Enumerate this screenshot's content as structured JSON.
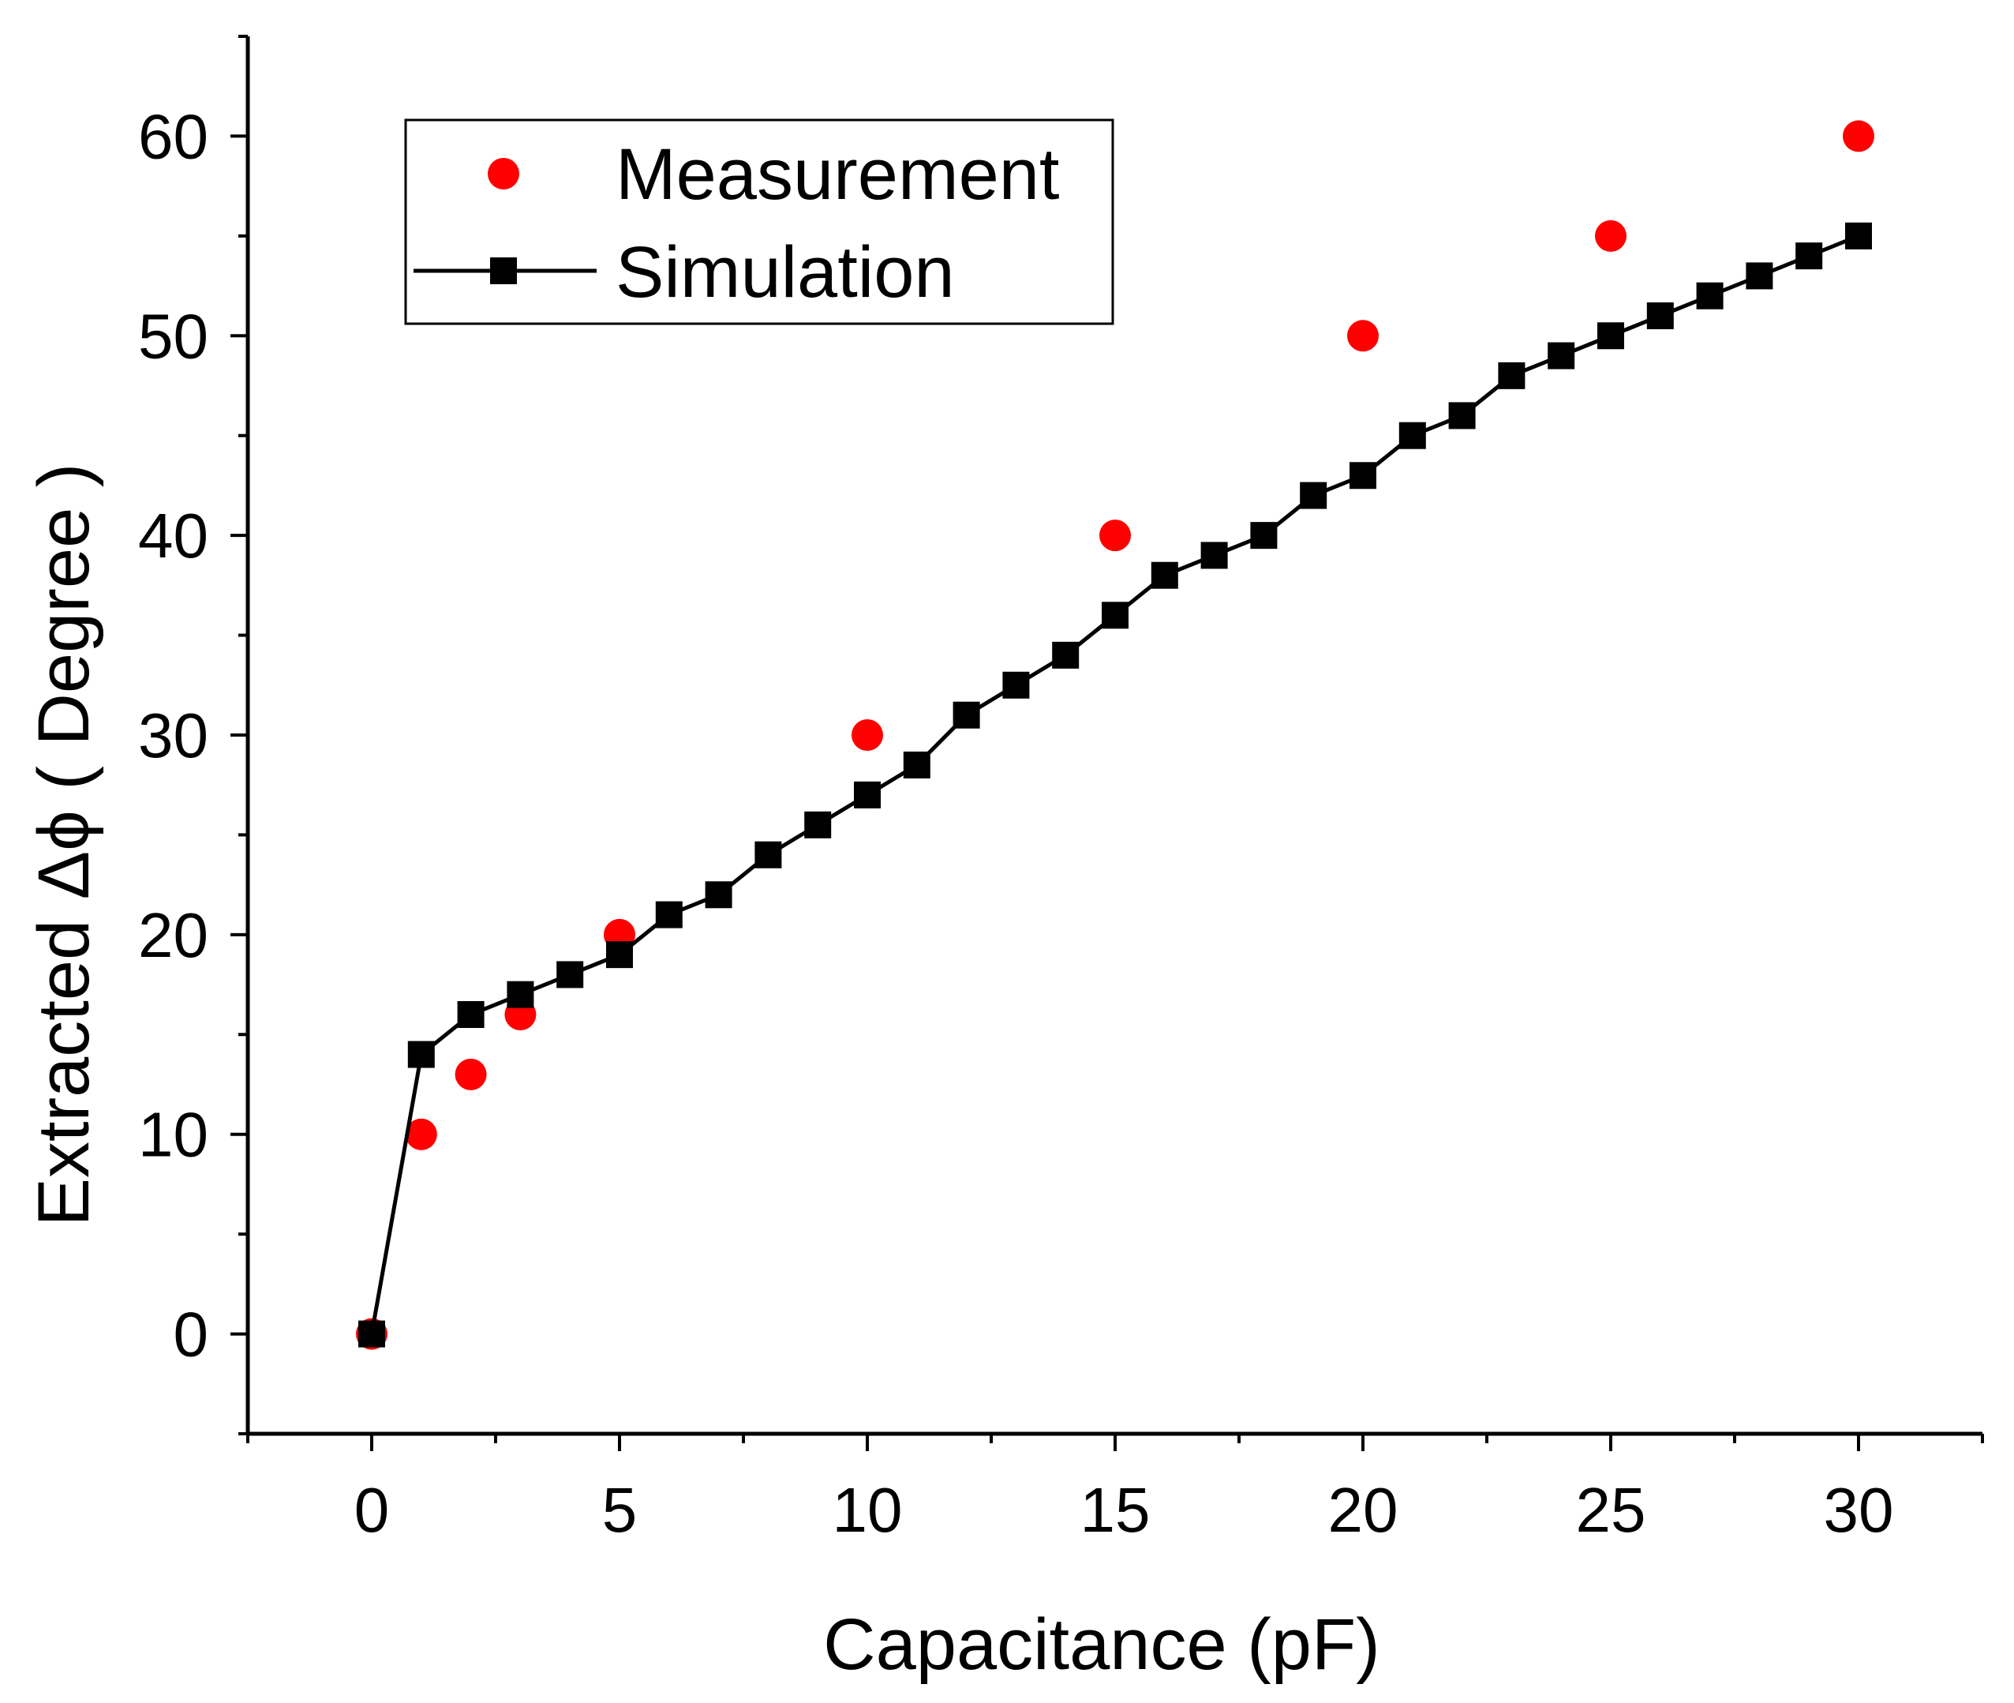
{
  "chart_data": {
    "type": "scatter",
    "xlabel": "Capacitance (pF)",
    "ylabel": "Extracted  Δϕ ( Degree )",
    "xlim": [
      -2.5,
      32.5
    ],
    "ylim": [
      -5,
      65
    ],
    "xticks": [
      0,
      5,
      10,
      15,
      20,
      25,
      30
    ],
    "yticks": [
      0,
      10,
      20,
      30,
      40,
      50,
      60
    ],
    "x_minor_step": 2.5,
    "y_minor_step": 5,
    "legend_position": "top-left",
    "series": [
      {
        "name": "Measurement",
        "kind": "scatter",
        "marker": "circle",
        "color": "#ff0000",
        "x": [
          0,
          1,
          2,
          3,
          5,
          10,
          15,
          20,
          25,
          30
        ],
        "y": [
          0,
          10,
          13,
          16,
          20,
          30,
          40,
          50,
          55,
          60
        ]
      },
      {
        "name": "Simulation",
        "kind": "line+markers",
        "marker": "square",
        "color": "#000000",
        "x": [
          0,
          1,
          2,
          3,
          4,
          5,
          6,
          7,
          8,
          9,
          10,
          11,
          12,
          13,
          14,
          15,
          16,
          17,
          18,
          19,
          20,
          21,
          22,
          23,
          24,
          25,
          26,
          27,
          28,
          29,
          30
        ],
        "y": [
          0,
          14,
          16,
          17,
          18,
          19,
          21,
          22,
          24,
          25.5,
          27,
          28.5,
          31,
          32.5,
          34,
          36,
          38,
          39,
          40,
          42,
          43,
          45,
          46,
          48,
          49,
          50,
          51,
          52,
          53,
          54,
          55
        ]
      }
    ]
  }
}
